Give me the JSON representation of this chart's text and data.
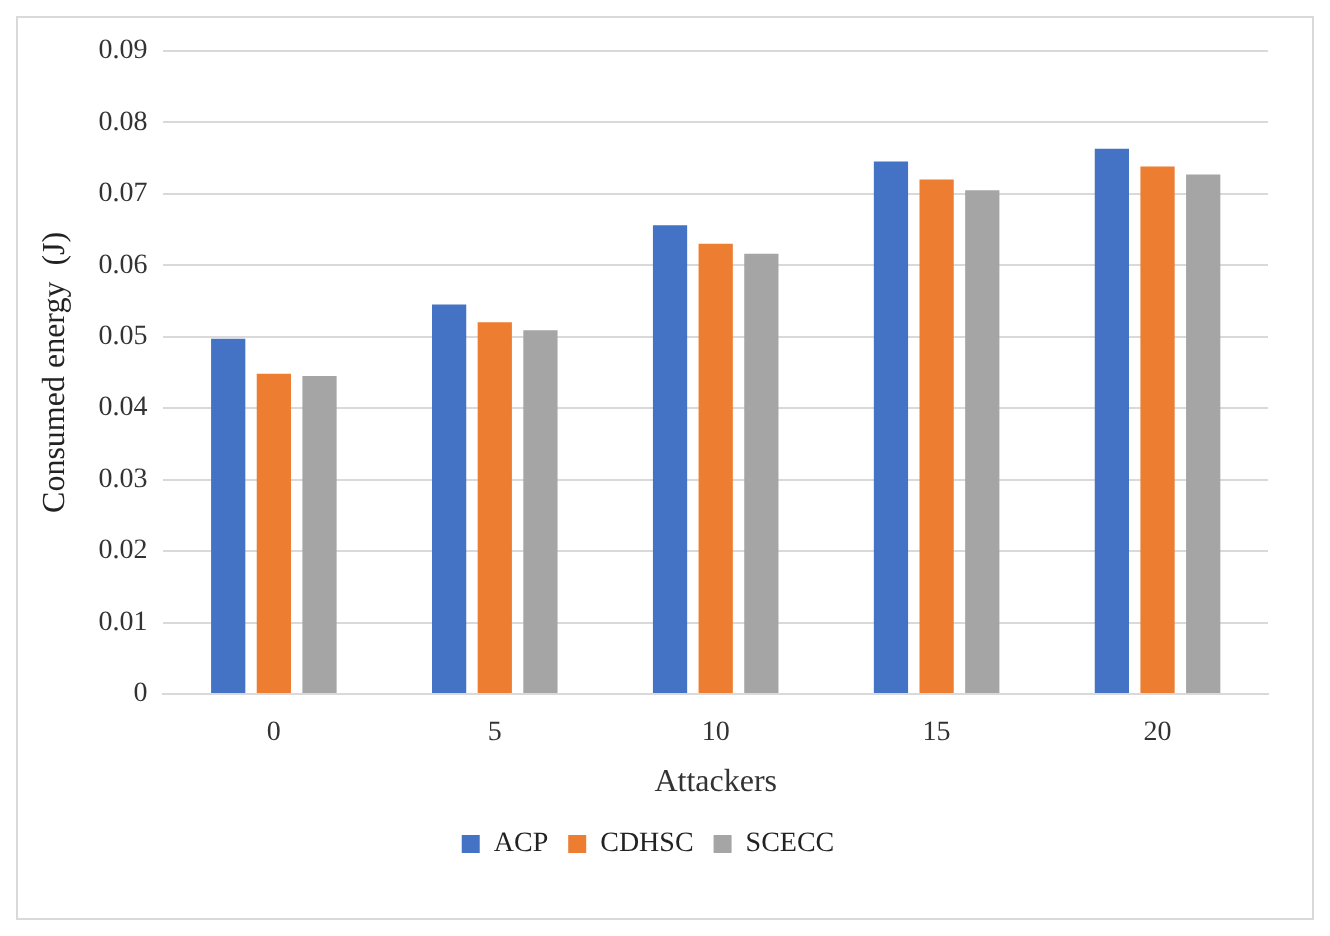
{
  "chart_data": {
    "type": "bar",
    "xlabel": "Attackers",
    "ylabel": "Consumed energy  (J)",
    "categories": [
      "0",
      "5",
      "10",
      "15",
      "20"
    ],
    "series": [
      {
        "name": "ACP",
        "color": "#4472c4",
        "values": [
          0.0497,
          0.0545,
          0.0656,
          0.0745,
          0.0763
        ]
      },
      {
        "name": "CDHSC",
        "color": "#ed7d31",
        "values": [
          0.0448,
          0.052,
          0.063,
          0.072,
          0.0738
        ]
      },
      {
        "name": "SCECC",
        "color": "#a5a5a5",
        "values": [
          0.0445,
          0.0509,
          0.0616,
          0.0705,
          0.0727
        ]
      }
    ],
    "ylim": [
      0,
      0.09
    ],
    "yticks": [
      0,
      0.01,
      0.02,
      0.03,
      0.04,
      0.05,
      0.06,
      0.07,
      0.08,
      0.09
    ],
    "grid": "y",
    "legend": "bottom"
  }
}
